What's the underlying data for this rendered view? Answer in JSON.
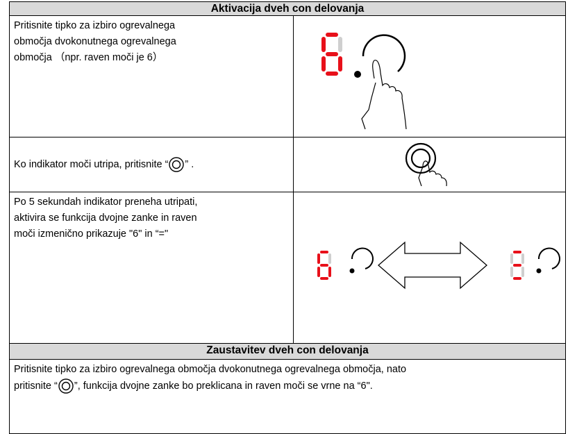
{
  "sections": [
    {
      "title": "Aktivacija dveh con delovanja",
      "rows": [
        {
          "lines": [
            "Pritisnite tipko za izbiro ogrevalnega",
            "območja dvokonutnega ogrevalnega",
            "območja （npr. raven moči je 6）"
          ]
        },
        {
          "before": "Ko indikator moči utripa, pritisnite “",
          "after": "” ."
        },
        {
          "lines": [
            "Po 5 sekundah indikator preneha utripati,",
            "aktivira se funkcija dvojne zanke in raven",
            "moči izmenično prikazuje \"6\" in “=\""
          ]
        }
      ]
    },
    {
      "title": "Zaustavitev dveh con delovanja",
      "rows": [
        {
          "line1": "Pritisnite tipko za izbiro ogrevalnega območja dvokonutnega ogrevalnega območja, nato",
          "before": "pritisnite “",
          "after": "”, funkcija dvojne zanke bo preklicana in raven moči se vrne na “6\"."
        }
      ]
    }
  ]
}
